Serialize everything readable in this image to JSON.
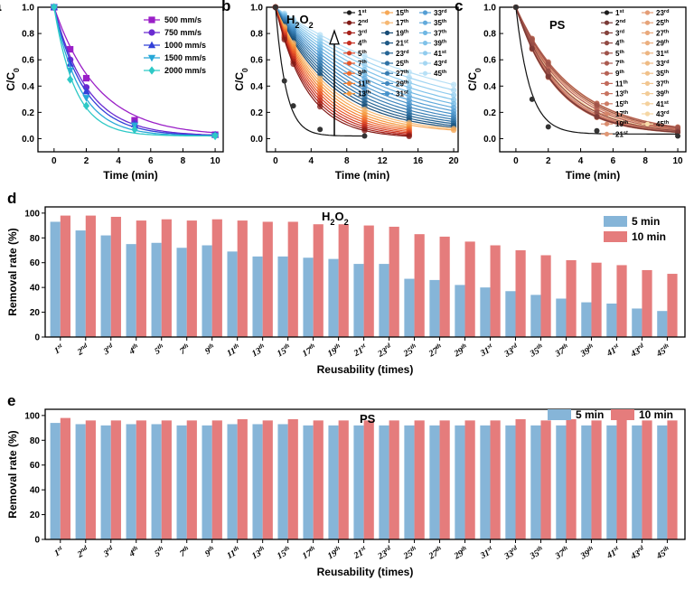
{
  "colors": {
    "bar_5min": "#86b5d8",
    "bar_10min": "#e57c7c",
    "a_series": [
      "#9a1fc7",
      "#6a2bd1",
      "#3240d8",
      "#28a8d8",
      "#2ec9c6"
    ]
  },
  "chart_data": [
    {
      "panel": "a",
      "type": "line",
      "xlabel": "Time (min)",
      "ylabel": "C/C0",
      "xlim": [
        -1,
        10.5
      ],
      "ylim": [
        -0.1,
        1.0
      ],
      "xticks": [
        0,
        2,
        4,
        6,
        8,
        10
      ],
      "yticks": [
        0.0,
        0.2,
        0.4,
        0.6,
        0.8,
        1.0
      ],
      "x": [
        0,
        1,
        2,
        5,
        10
      ],
      "legend_position": "top-right",
      "series": [
        {
          "name": "500 mm/s",
          "marker": "square",
          "values": [
            1.0,
            0.68,
            0.46,
            0.14,
            0.03
          ]
        },
        {
          "name": "750 mm/s",
          "marker": "circle",
          "values": [
            1.0,
            0.6,
            0.39,
            0.12,
            0.03
          ]
        },
        {
          "name": "1000 mm/s",
          "marker": "triangle-up",
          "values": [
            1.0,
            0.57,
            0.36,
            0.11,
            0.03
          ]
        },
        {
          "name": "1500 mm/s",
          "marker": "triangle-down",
          "values": [
            1.0,
            0.52,
            0.31,
            0.1,
            0.02
          ]
        },
        {
          "name": "2000 mm/s",
          "marker": "diamond",
          "values": [
            1.0,
            0.45,
            0.25,
            0.07,
            0.02
          ]
        }
      ]
    },
    {
      "panel": "b",
      "type": "line",
      "title": "H2O2",
      "xlabel": "Time (min)",
      "ylabel": "C/C0",
      "xlim": [
        -1,
        20.5
      ],
      "ylim": [
        -0.1,
        1.0
      ],
      "xticks": [
        0,
        4,
        8,
        12,
        16,
        20
      ],
      "yticks": [
        0.0,
        0.2,
        0.4,
        0.6,
        0.8,
        1.0
      ],
      "legend": [
        "1st",
        "2nd",
        "3rd",
        "4th",
        "5th",
        "7th",
        "9th",
        "11th",
        "13th",
        "15th",
        "17th",
        "19th",
        "21st",
        "23rd",
        "25th",
        "27th",
        "29th",
        "31st",
        "33rd",
        "35th",
        "37th",
        "39th",
        "41st",
        "43rd",
        "45th"
      ],
      "x_first_run": [
        0,
        1,
        2,
        5,
        10
      ],
      "first_run_values": [
        1.0,
        0.44,
        0.25,
        0.07,
        0.02
      ],
      "x_later_runs": [
        0,
        1,
        2,
        5,
        10,
        15,
        20
      ],
      "final_value_45th": 0.12,
      "value_at_5min_range": [
        0.07,
        0.79
      ],
      "arrow_direction": "up"
    },
    {
      "panel": "c",
      "type": "line",
      "title": "PS",
      "xlabel": "Time (min)",
      "ylabel": "C/C0",
      "xlim": [
        -1,
        10.5
      ],
      "ylim": [
        -0.1,
        1.0
      ],
      "xticks": [
        0,
        2,
        4,
        6,
        8,
        10
      ],
      "yticks": [
        0.0,
        0.2,
        0.4,
        0.6,
        0.8,
        1.0
      ],
      "legend": [
        "1st",
        "2nd",
        "3rd",
        "4th",
        "5th",
        "7th",
        "9th",
        "11th",
        "13th",
        "15th",
        "17th",
        "19th",
        "21st",
        "23rd",
        "25th",
        "27th",
        "29th",
        "31st",
        "33rd",
        "35th",
        "37th",
        "39th",
        "41st",
        "43rd",
        "45th"
      ],
      "x": [
        0,
        1,
        2,
        5,
        10
      ],
      "first_run_values": [
        1.0,
        0.3,
        0.09,
        0.06,
        0.02
      ],
      "later_run_values": [
        1.0,
        0.7,
        0.45,
        0.08,
        0.04
      ]
    },
    {
      "panel": "d",
      "type": "bar",
      "title": "H2O2",
      "xlabel": "Reusability (times)",
      "ylabel": "Removal rate (%)",
      "ylim": [
        0,
        105
      ],
      "yticks": [
        0,
        20,
        40,
        60,
        80,
        100
      ],
      "categories": [
        "1st",
        "2nd",
        "3rd",
        "4th",
        "5th",
        "7th",
        "9th",
        "11th",
        "13th",
        "15th",
        "17th",
        "19th",
        "21st",
        "23rd",
        "25th",
        "27th",
        "29th",
        "31st",
        "33rd",
        "35th",
        "37th",
        "39th",
        "41st",
        "43rd",
        "45th"
      ],
      "legend_position": "top-right",
      "series": [
        {
          "name": "5 min",
          "values": [
            93,
            86,
            82,
            75,
            76,
            72,
            74,
            69,
            65,
            65,
            64,
            63,
            59,
            59,
            47,
            46,
            42,
            40,
            37,
            34,
            31,
            28,
            27,
            23,
            21
          ]
        },
        {
          "name": "10 min",
          "values": [
            98,
            98,
            97,
            94,
            95,
            94,
            95,
            94,
            93,
            93,
            91,
            91,
            90,
            89,
            83,
            81,
            77,
            74,
            70,
            66,
            62,
            60,
            58,
            54,
            51
          ]
        }
      ]
    },
    {
      "panel": "e",
      "type": "bar",
      "title": "PS",
      "xlabel": "Reusability (times)",
      "ylabel": "Removal rate (%)",
      "ylim": [
        0,
        105
      ],
      "yticks": [
        0,
        20,
        40,
        60,
        80,
        100
      ],
      "categories": [
        "1st",
        "2nd",
        "3rd",
        "4th",
        "5th",
        "7th",
        "9th",
        "11th",
        "13th",
        "15th",
        "17th",
        "19th",
        "21st",
        "23rd",
        "25th",
        "27th",
        "29th",
        "31st",
        "33rd",
        "35th",
        "37th",
        "39th",
        "41st",
        "43rd",
        "45th"
      ],
      "legend_position": "top-right",
      "series": [
        {
          "name": "5 min",
          "values": [
            94,
            93,
            92,
            93,
            93,
            92,
            92,
            93,
            93,
            93,
            92,
            92,
            92,
            92,
            92,
            92,
            92,
            92,
            92,
            92,
            92,
            92,
            92,
            92,
            92
          ]
        },
        {
          "name": "10 min",
          "values": [
            98,
            96,
            96,
            96,
            96,
            96,
            96,
            97,
            96,
            97,
            96,
            96,
            96,
            96,
            96,
            96,
            96,
            96,
            97,
            96,
            97,
            96,
            97,
            96,
            96
          ]
        }
      ]
    }
  ]
}
